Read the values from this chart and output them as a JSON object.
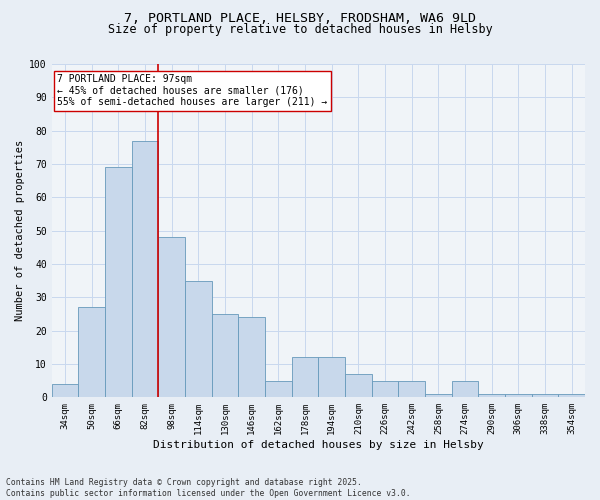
{
  "title_line1": "7, PORTLAND PLACE, HELSBY, FRODSHAM, WA6 9LD",
  "title_line2": "Size of property relative to detached houses in Helsby",
  "xlabel": "Distribution of detached houses by size in Helsby",
  "ylabel": "Number of detached properties",
  "categories": [
    "34sqm",
    "50sqm",
    "66sqm",
    "82sqm",
    "98sqm",
    "114sqm",
    "130sqm",
    "146sqm",
    "162sqm",
    "178sqm",
    "194sqm",
    "210sqm",
    "226sqm",
    "242sqm",
    "258sqm",
    "274sqm",
    "290sqm",
    "306sqm",
    "338sqm",
    "354sqm"
  ],
  "values": [
    4,
    27,
    69,
    77,
    48,
    35,
    25,
    24,
    5,
    12,
    12,
    7,
    5,
    5,
    1,
    5,
    1,
    1,
    1,
    1
  ],
  "bar_color": "#c8d8eb",
  "bar_edge_color": "#6699bb",
  "vline_x": 3.5,
  "vline_color": "#cc0000",
  "annotation_text": "7 PORTLAND PLACE: 97sqm\n← 45% of detached houses are smaller (176)\n55% of semi-detached houses are larger (211) →",
  "annotation_box_color": "#ffffff",
  "annotation_box_edge": "#cc0000",
  "grid_color": "#c8d8ee",
  "ylim": [
    0,
    100
  ],
  "yticks": [
    0,
    10,
    20,
    30,
    40,
    50,
    60,
    70,
    80,
    90,
    100
  ],
  "footnote": "Contains HM Land Registry data © Crown copyright and database right 2025.\nContains public sector information licensed under the Open Government Licence v3.0.",
  "bg_color": "#e8eef5",
  "plot_bg_color": "#f0f4f8",
  "title1_fontsize": 9.5,
  "title2_fontsize": 8.5,
  "tick_fontsize": 6.5,
  "ylabel_fontsize": 7.5,
  "xlabel_fontsize": 8.0,
  "annot_fontsize": 7.0,
  "footnote_fontsize": 5.8
}
